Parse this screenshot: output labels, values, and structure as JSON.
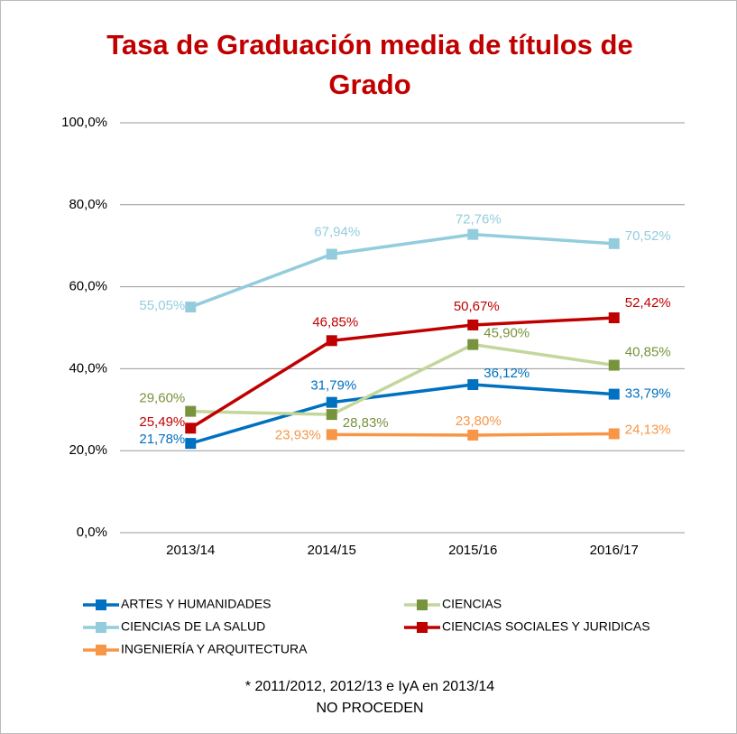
{
  "chart_data": {
    "type": "line",
    "title": "Tasa de Graduación media de títulos de Grado",
    "note": [
      "* 2011/2012, 2012/13 e IyA en 2013/14",
      "NO PROCEDEN"
    ],
    "categories": [
      "2013/14",
      "2014/15",
      "2015/16",
      "2016/17"
    ],
    "ylim": [
      0,
      100
    ],
    "yticks": [
      {
        "value": 0,
        "label": "0,0%"
      },
      {
        "value": 20,
        "label": "20,0%"
      },
      {
        "value": 40,
        "label": "40,0%"
      },
      {
        "value": 60,
        "label": "60,0%"
      },
      {
        "value": 80,
        "label": "80,0%"
      },
      {
        "value": 100,
        "label": "100,0%"
      }
    ],
    "grid": true,
    "series": [
      {
        "name": "ARTES Y HUMANIDADES",
        "color": "#0070c0",
        "marker_color": "#0070c0",
        "values": [
          21.78,
          31.79,
          36.12,
          33.79
        ],
        "value_labels": [
          "21,78%",
          "31,79%",
          "36,12%",
          "33,79%"
        ]
      },
      {
        "name": "CIENCIAS",
        "color": "#c3d69b",
        "marker_color": "#77933c",
        "values": [
          29.6,
          28.83,
          45.9,
          40.85
        ],
        "value_labels": [
          "29,60%",
          "28,83%",
          "45,90%",
          "40,85%"
        ]
      },
      {
        "name": "CIENCIAS DE LA SALUD",
        "color": "#93cddd",
        "marker_color": "#93cddd",
        "values": [
          55.05,
          67.94,
          72.76,
          70.52
        ],
        "value_labels": [
          "55,05%",
          "67,94%",
          "72,76%",
          "70,52%"
        ]
      },
      {
        "name": "CIENCIAS SOCIALES Y JURIDICAS",
        "color": "#c00000",
        "marker_color": "#c00000",
        "values": [
          25.49,
          46.85,
          50.67,
          52.42
        ],
        "value_labels": [
          "25,49%",
          "46,85%",
          "50,67%",
          "52,42%"
        ]
      },
      {
        "name": "INGENIERÍA Y ARQUITECTURA",
        "color": "#f79646",
        "marker_color": "#f79646",
        "values": [
          null,
          23.93,
          23.8,
          24.13
        ],
        "value_labels": [
          null,
          "23,93%",
          "23,80%",
          "24,13%"
        ]
      }
    ]
  }
}
